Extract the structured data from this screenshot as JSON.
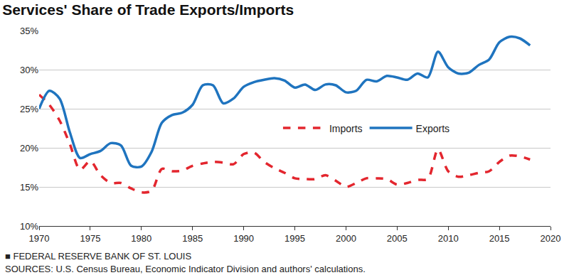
{
  "chart_data": {
    "type": "line",
    "title": "Services' Share of Trade Exports/Imports",
    "footer": [
      "■ FEDERAL RESERVE BANK OF ST. LOUIS",
      "SOURCES: U.S. Census Bureau, Economic Indicator Division and authors' calculations."
    ],
    "x": [
      1970,
      1971,
      1972,
      1973,
      1974,
      1975,
      1976,
      1977,
      1978,
      1979,
      1980,
      1981,
      1982,
      1983,
      1984,
      1985,
      1986,
      1987,
      1988,
      1989,
      1990,
      1991,
      1992,
      1993,
      1994,
      1995,
      1996,
      1997,
      1998,
      1999,
      2000,
      2001,
      2002,
      2003,
      2004,
      2005,
      2006,
      2007,
      2008,
      2009,
      2010,
      2011,
      2012,
      2013,
      2014,
      2015,
      2016,
      2017,
      2018
    ],
    "series": [
      {
        "name": "Imports",
        "color": "#e3262e",
        "line_style": "dashed",
        "values": [
          26.8,
          25.5,
          23.5,
          20.5,
          17.2,
          18.3,
          16.5,
          15.5,
          15.5,
          14.8,
          14.3,
          14.5,
          17.3,
          17.0,
          17.1,
          17.7,
          18.0,
          18.2,
          18.1,
          17.9,
          19.2,
          19.4,
          18.2,
          17.4,
          16.8,
          16.1,
          16.0,
          16.0,
          16.5,
          15.8,
          15.0,
          15.5,
          16.1,
          16.1,
          16.0,
          15.3,
          15.5,
          15.9,
          16.0,
          19.8,
          17.0,
          16.3,
          16.5,
          16.8,
          17.0,
          18.2,
          19.0,
          18.9,
          18.5
        ]
      },
      {
        "name": "Exports",
        "color": "#1f74bf",
        "line_style": "solid",
        "values": [
          25.0,
          27.3,
          26.3,
          22.0,
          18.7,
          19.2,
          19.6,
          20.6,
          20.3,
          17.7,
          17.6,
          19.5,
          23.2,
          24.2,
          24.5,
          25.5,
          28.0,
          28.0,
          25.7,
          26.3,
          27.8,
          28.4,
          28.7,
          28.9,
          28.6,
          27.7,
          28.1,
          27.4,
          28.1,
          28.0,
          27.1,
          27.3,
          28.7,
          28.5,
          29.2,
          29.0,
          28.7,
          29.5,
          29.0,
          32.3,
          30.3,
          29.5,
          29.6,
          30.6,
          31.3,
          33.5,
          34.2,
          34.0,
          33.1
        ]
      }
    ],
    "xlim": [
      1970,
      2020
    ],
    "xticks": [
      1970,
      1975,
      1980,
      1985,
      1990,
      1995,
      2000,
      2005,
      2010,
      2015,
      2020
    ],
    "ylim": [
      10,
      35
    ],
    "yticks": [
      {
        "value": 10,
        "label": "10%"
      },
      {
        "value": 15,
        "label": "15%"
      },
      {
        "value": 20,
        "label": "20%"
      },
      {
        "value": 25,
        "label": "25%"
      },
      {
        "value": 30,
        "label": "30%"
      },
      {
        "value": 35,
        "label": "35%"
      }
    ],
    "grid": true,
    "legend": "right"
  }
}
